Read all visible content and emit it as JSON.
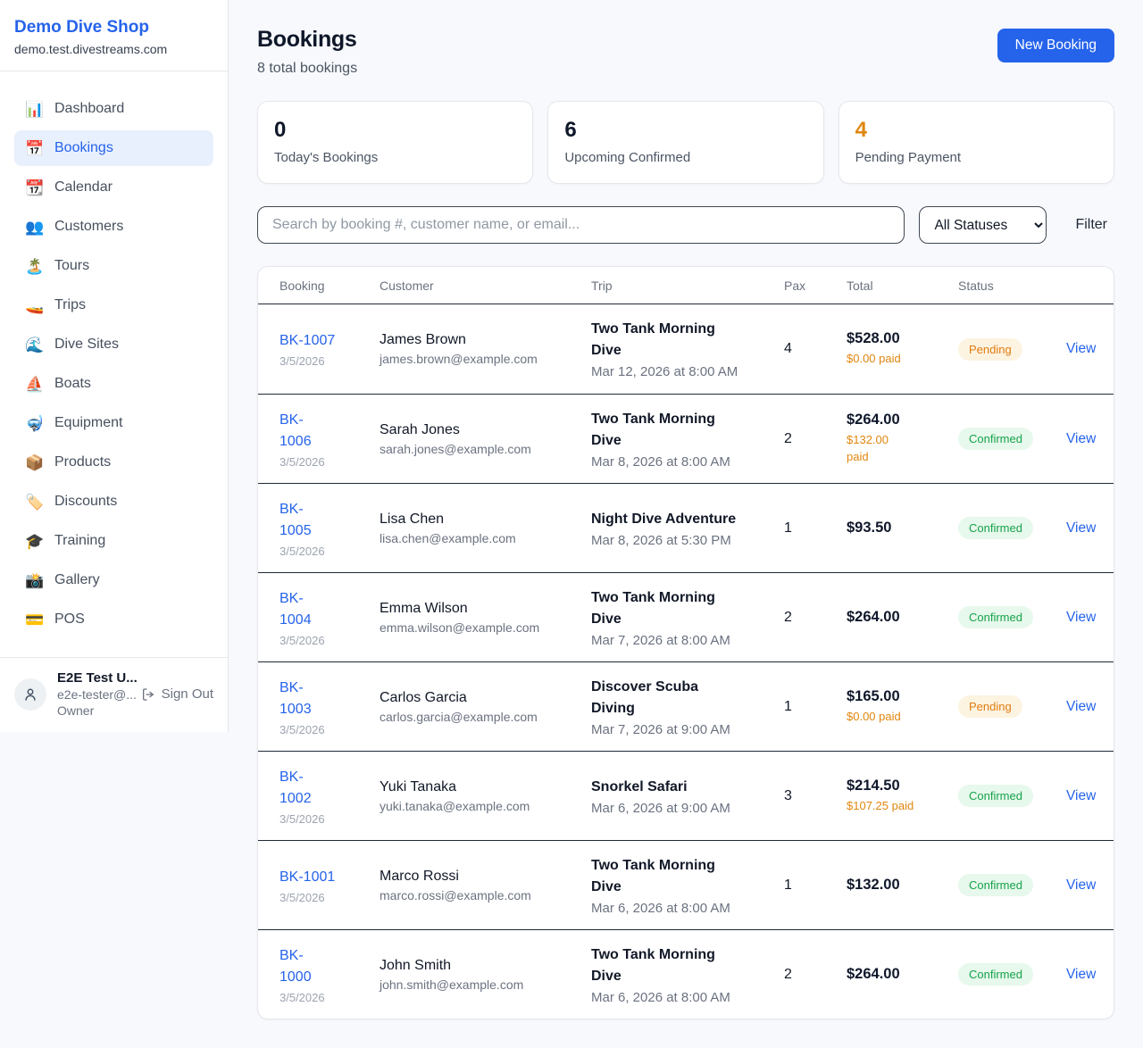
{
  "colors": {
    "accent_blue": "#2563eb",
    "pending_orange": "#e0860f",
    "confirmed_green": "#16a34a"
  },
  "brand": {
    "name": "Demo Dive Shop",
    "domain": "demo.test.divestreams.com"
  },
  "sidebar": {
    "items": [
      {
        "icon": "📊",
        "icon_name": "bar-chart-icon",
        "label": "Dashboard",
        "active": false
      },
      {
        "icon": "📅",
        "icon_name": "calendar-icon",
        "label": "Bookings",
        "active": true
      },
      {
        "icon": "📆",
        "icon_name": "tear-off-calendar-icon",
        "label": "Calendar",
        "active": false
      },
      {
        "icon": "👥",
        "icon_name": "people-icon",
        "label": "Customers",
        "active": false
      },
      {
        "icon": "🏝️",
        "icon_name": "desert-island-icon",
        "label": "Tours",
        "active": false
      },
      {
        "icon": "🚤",
        "icon_name": "speedboat-icon",
        "label": "Trips",
        "active": false
      },
      {
        "icon": "🌊",
        "icon_name": "wave-icon",
        "label": "Dive Sites",
        "active": false
      },
      {
        "icon": "⛵",
        "icon_name": "sailboat-icon",
        "label": "Boats",
        "active": false
      },
      {
        "icon": "🤿",
        "icon_name": "diving-mask-icon",
        "label": "Equipment",
        "active": false
      },
      {
        "icon": "📦",
        "icon_name": "package-icon",
        "label": "Products",
        "active": false
      },
      {
        "icon": "🏷️",
        "icon_name": "label-tag-icon",
        "label": "Discounts",
        "active": false
      },
      {
        "icon": "🎓",
        "icon_name": "graduation-cap-icon",
        "label": "Training",
        "active": false
      },
      {
        "icon": "📸",
        "icon_name": "camera-flash-icon",
        "label": "Gallery",
        "active": false
      },
      {
        "icon": "💳",
        "icon_name": "credit-card-icon",
        "label": "POS",
        "active": false
      }
    ]
  },
  "user": {
    "name": "E2E Test U...",
    "email": "e2e-tester@...",
    "role": "Owner",
    "sign_out": "Sign Out"
  },
  "header": {
    "title": "Bookings",
    "subtitle": "8 total bookings",
    "new_booking": "New Booking"
  },
  "stats": [
    {
      "value": "0",
      "label": "Today's Bookings",
      "accent": false
    },
    {
      "value": "6",
      "label": "Upcoming Confirmed",
      "accent": false
    },
    {
      "value": "4",
      "label": "Pending Payment",
      "accent": true
    }
  ],
  "filters": {
    "search_placeholder": "Search by booking #, customer name, or email...",
    "status_select": "All Statuses",
    "filter_label": "Filter"
  },
  "table": {
    "columns": [
      "Booking",
      "Customer",
      "Trip",
      "Pax",
      "Total",
      "Status"
    ],
    "rows": [
      {
        "id": "BK-1007",
        "date": "3/5/2026",
        "name": "James Brown",
        "email": "james.brown@example.com",
        "trip": "Two Tank Morning\nDive",
        "trip_date": "Mar 12, 2026 at 8:00 AM",
        "pax": "4",
        "total": "$528.00",
        "paid": "$0.00 paid",
        "status": "Pending",
        "view": "View"
      },
      {
        "id": "BK-\n1006",
        "date": "3/5/2026",
        "name": "Sarah Jones",
        "email": "sarah.jones@example.com",
        "trip": "Two Tank Morning\nDive",
        "trip_date": "Mar 8, 2026 at 8:00 AM",
        "pax": "2",
        "total": "$264.00",
        "paid": "$132.00\npaid",
        "status": "Confirmed",
        "view": "View"
      },
      {
        "id": "BK-\n1005",
        "date": "3/5/2026",
        "name": "Lisa Chen",
        "email": "lisa.chen@example.com",
        "trip": "Night Dive Adventure",
        "trip_date": "Mar 8, 2026 at 5:30 PM",
        "pax": "1",
        "total": "$93.50",
        "paid": null,
        "status": "Confirmed",
        "view": "View"
      },
      {
        "id": "BK-\n1004",
        "date": "3/5/2026",
        "name": "Emma Wilson",
        "email": "emma.wilson@example.com",
        "trip": "Two Tank Morning\nDive",
        "trip_date": "Mar 7, 2026 at 8:00 AM",
        "pax": "2",
        "total": "$264.00",
        "paid": null,
        "status": "Confirmed",
        "view": "View"
      },
      {
        "id": "BK-\n1003",
        "date": "3/5/2026",
        "name": "Carlos Garcia",
        "email": "carlos.garcia@example.com",
        "trip": "Discover Scuba\nDiving",
        "trip_date": "Mar 7, 2026 at 9:00 AM",
        "pax": "1",
        "total": "$165.00",
        "paid": "$0.00 paid",
        "status": "Pending",
        "view": "View"
      },
      {
        "id": "BK-\n1002",
        "date": "3/5/2026",
        "name": "Yuki Tanaka",
        "email": "yuki.tanaka@example.com",
        "trip": "Snorkel Safari",
        "trip_date": "Mar 6, 2026 at 9:00 AM",
        "pax": "3",
        "total": "$214.50",
        "paid": "$107.25 paid",
        "status": "Confirmed",
        "view": "View"
      },
      {
        "id": "BK-1001",
        "date": "3/5/2026",
        "name": "Marco Rossi",
        "email": "marco.rossi@example.com",
        "trip": "Two Tank Morning\nDive",
        "trip_date": "Mar 6, 2026 at 8:00 AM",
        "pax": "1",
        "total": "$132.00",
        "paid": null,
        "status": "Confirmed",
        "view": "View"
      },
      {
        "id": "BK-\n1000",
        "date": "3/5/2026",
        "name": "John Smith",
        "email": "john.smith@example.com",
        "trip": "Two Tank Morning\nDive",
        "trip_date": "Mar 6, 2026 at 8:00 AM",
        "pax": "2",
        "total": "$264.00",
        "paid": null,
        "status": "Confirmed",
        "view": "View"
      }
    ]
  }
}
